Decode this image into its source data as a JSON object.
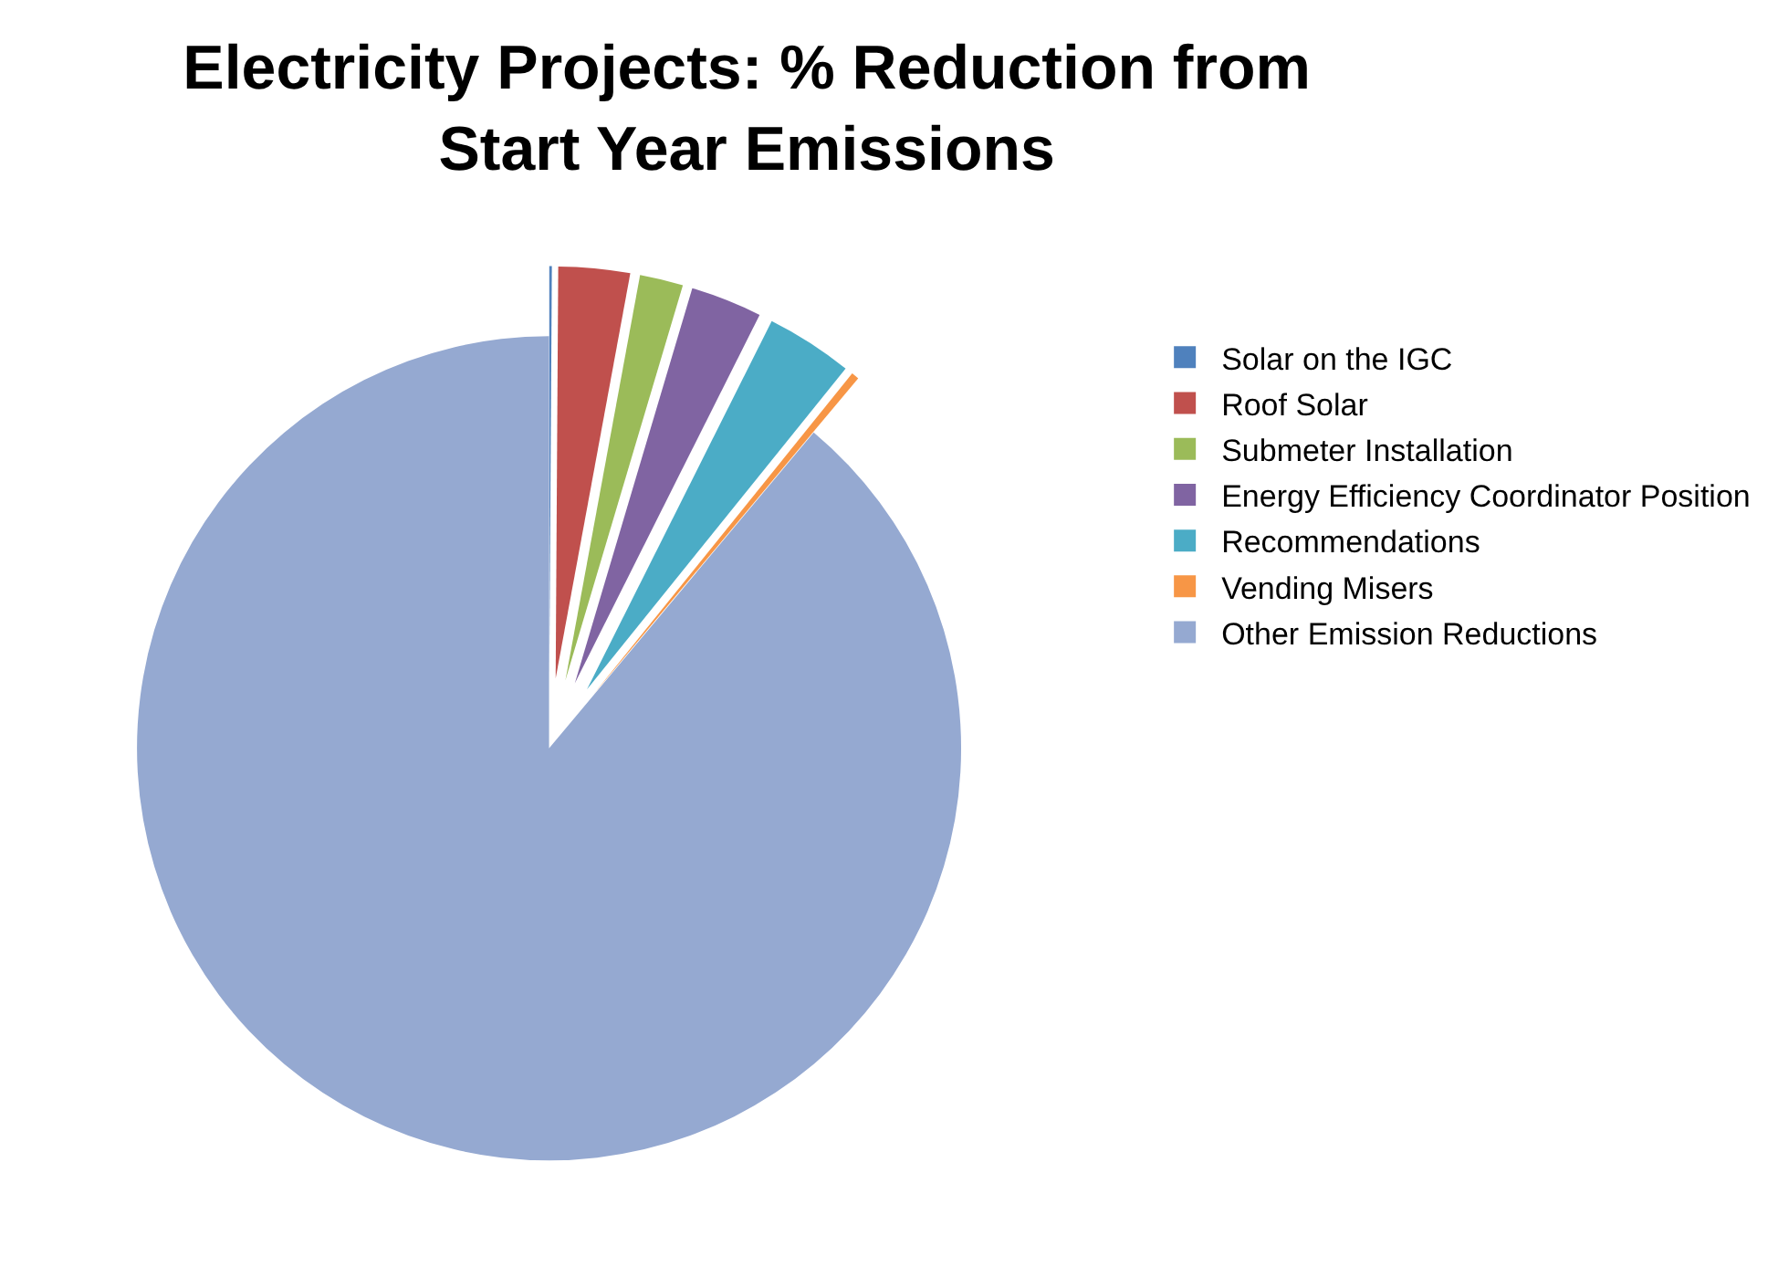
{
  "chart_data": {
    "type": "pie",
    "title": "Electricity Projects: % Reduction from\nStart Year Emissions",
    "categories": [
      "Solar on the IGC",
      "Roof Solar",
      "Submeter Installation",
      "Energy Efficiency Coordinator Position",
      "Recommendations",
      "Vending Misers",
      "Other Emission Reductions"
    ],
    "values": [
      0.1,
      2.8,
      1.7,
      2.8,
      3.4,
      0.3,
      88.9
    ],
    "colors": [
      "#4f81bd",
      "#c0504d",
      "#9bbb59",
      "#8064a2",
      "#4bacc6",
      "#f79646",
      "#95a9d1"
    ],
    "legend": "right"
  }
}
